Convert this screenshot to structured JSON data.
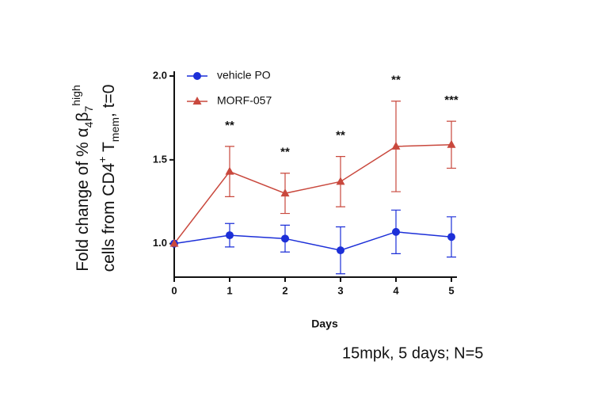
{
  "chart_data": {
    "type": "line",
    "ylabel": [
      [
        {
          "text": "Fold change of % α"
        },
        {
          "text": "4",
          "style": "sub"
        },
        {
          "text": "β"
        },
        {
          "text": "7",
          "style": "sub"
        },
        {
          "text": "high",
          "style": "sup"
        }
      ],
      [
        {
          "text": "cells from CD4"
        },
        {
          "text": "+",
          "style": "sup"
        },
        {
          "text": " T"
        },
        {
          "text": "mem",
          "style": "sub"
        },
        {
          "text": ", t=0"
        }
      ]
    ],
    "xlabel": "Days",
    "x": [
      0,
      1,
      2,
      3,
      4,
      5
    ],
    "xlim": [
      0,
      5.1
    ],
    "xticks": [
      0,
      1,
      2,
      3,
      4,
      5
    ],
    "ylim": [
      0.8,
      2.0
    ],
    "yticks": [
      {
        "value": 1,
        "label": "1.0"
      },
      {
        "value": 1.5,
        "label": "1.5"
      },
      {
        "value": 2,
        "label": "2.0"
      }
    ],
    "legend": "top-left",
    "series": [
      {
        "name": "vehicle PO",
        "color": "#1c2fd8",
        "marker": "circle",
        "values": [
          1.0,
          1.05,
          1.03,
          0.96,
          1.07,
          1.04
        ],
        "errors": [
          0,
          0.07,
          0.08,
          0.14,
          0.13,
          0.12
        ]
      },
      {
        "name": "MORF-057",
        "color": "#c9483d",
        "marker": "triangle",
        "values": [
          1.0,
          1.43,
          1.3,
          1.37,
          1.58,
          1.59
        ],
        "errors": [
          0,
          0.15,
          0.12,
          0.15,
          0.27,
          0.14
        ]
      }
    ],
    "annotations": [
      {
        "x": 1,
        "text": "**"
      },
      {
        "x": 2,
        "text": "**"
      },
      {
        "x": 3,
        "text": "**"
      },
      {
        "x": 4,
        "text": "**"
      },
      {
        "x": 5,
        "text": "***"
      }
    ],
    "footnote": "15mpk, 5 days; N=5"
  }
}
